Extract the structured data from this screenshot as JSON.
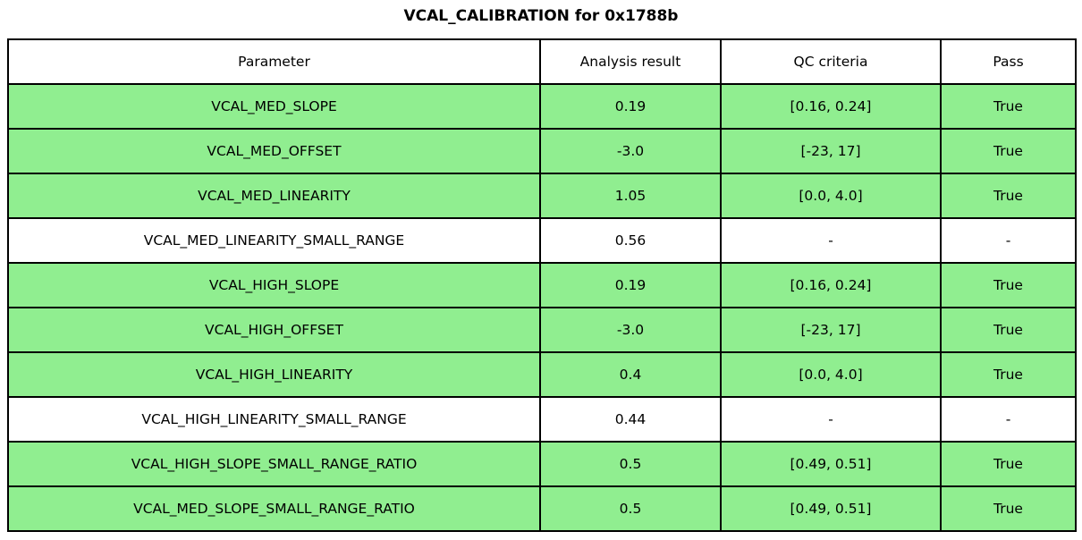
{
  "title": "VCAL_CALIBRATION for 0x1788b",
  "chart_data": {
    "type": "table",
    "title": "VCAL_CALIBRATION for 0x1788b",
    "columns": [
      "Parameter",
      "Analysis result",
      "QC criteria",
      "Pass"
    ],
    "rows": [
      {
        "parameter": "VCAL_MED_SLOPE",
        "result": "0.19",
        "criteria": "[0.16, 0.24]",
        "pass": "True",
        "highlight": true
      },
      {
        "parameter": "VCAL_MED_OFFSET",
        "result": "-3.0",
        "criteria": "[-23, 17]",
        "pass": "True",
        "highlight": true
      },
      {
        "parameter": "VCAL_MED_LINEARITY",
        "result": "1.05",
        "criteria": "[0.0, 4.0]",
        "pass": "True",
        "highlight": true
      },
      {
        "parameter": "VCAL_MED_LINEARITY_SMALL_RANGE",
        "result": "0.56",
        "criteria": "-",
        "pass": "-",
        "highlight": false
      },
      {
        "parameter": "VCAL_HIGH_SLOPE",
        "result": "0.19",
        "criteria": "[0.16, 0.24]",
        "pass": "True",
        "highlight": true
      },
      {
        "parameter": "VCAL_HIGH_OFFSET",
        "result": "-3.0",
        "criteria": "[-23, 17]",
        "pass": "True",
        "highlight": true
      },
      {
        "parameter": "VCAL_HIGH_LINEARITY",
        "result": "0.4",
        "criteria": "[0.0, 4.0]",
        "pass": "True",
        "highlight": true
      },
      {
        "parameter": "VCAL_HIGH_LINEARITY_SMALL_RANGE",
        "result": "0.44",
        "criteria": "-",
        "pass": "-",
        "highlight": false
      },
      {
        "parameter": "VCAL_HIGH_SLOPE_SMALL_RANGE_RATIO",
        "result": "0.5",
        "criteria": "[0.49, 0.51]",
        "pass": "True",
        "highlight": true
      },
      {
        "parameter": "VCAL_MED_SLOPE_SMALL_RANGE_RATIO",
        "result": "0.5",
        "criteria": "[0.49, 0.51]",
        "pass": "True",
        "highlight": true
      }
    ],
    "layout": {
      "legend": "none",
      "grid": "cell-borders",
      "pass_row_color": "#90EE90",
      "plain_row_color": "#FFFFFF",
      "border_color": "#000000",
      "header_bg_color": "#FFFFFF",
      "text_color": "#000000"
    }
  }
}
